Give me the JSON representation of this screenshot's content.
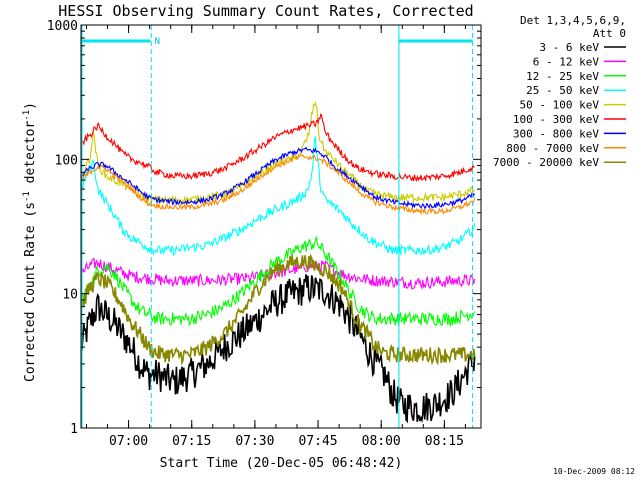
{
  "chart_data": {
    "type": "line",
    "title": "HESSI Observing Summary Count Rates, Corrected",
    "xlabel": "Start Time (20-Dec-05 06:48:42)",
    "ylabel": "Corrected Count Rate (s⁻¹ detector⁻¹)",
    "ylabel_parts": {
      "prefix": "Corrected Count Rate (s",
      "sup1": "-1",
      "middle": " detector",
      "sup2": "-1",
      "suffix": ")"
    },
    "yscale": "log",
    "ylim": [
      1,
      1000
    ],
    "xlim_minutes": [
      0,
      95
    ],
    "x_ticks": [
      {
        "label": "07:00",
        "minutes": 11.3
      },
      {
        "label": "07:15",
        "minutes": 26.3
      },
      {
        "label": "07:30",
        "minutes": 41.3
      },
      {
        "label": "07:45",
        "minutes": 56.3
      },
      {
        "label": "08:00",
        "minutes": 71.3
      },
      {
        "label": "08:15",
        "minutes": 86.3
      }
    ],
    "y_ticks": [
      {
        "label": "1",
        "value": 1
      },
      {
        "label": "10",
        "value": 10
      },
      {
        "label": "100",
        "value": 100
      },
      {
        "label": "1000",
        "value": 1000
      }
    ],
    "legend_header": [
      "Det 1,3,4,5,6,9,",
      "Att 0"
    ],
    "legend_position": "right",
    "timestamp": "10-Dec-2009 08:12",
    "annotations": [
      {
        "label": "N",
        "minutes": 17.5
      }
    ],
    "flags": {
      "night_bars_minutes": [
        [
          0,
          16.5
        ],
        [
          75.5,
          93
        ]
      ],
      "saa_lines_minutes": [
        16.7,
        75.5,
        93
      ]
    },
    "series": [
      {
        "name": "3 - 6 keV",
        "color": "#000000",
        "x": [
          0,
          2,
          4,
          8,
          12,
          14,
          16,
          18,
          22,
          26,
          30,
          34,
          38,
          42,
          46,
          50,
          54,
          58,
          62,
          66,
          70,
          72,
          74,
          76,
          80,
          84,
          88,
          90,
          92,
          94
        ],
        "y": [
          4,
          6,
          8,
          6,
          4,
          3,
          2.5,
          2.5,
          2.2,
          2.5,
          3,
          4,
          5,
          6.5,
          8.5,
          10,
          11,
          10.5,
          8,
          5,
          3,
          2.5,
          1.8,
          1.5,
          1.4,
          1.5,
          1.8,
          2.2,
          2.8,
          3.5
        ]
      },
      {
        "name": "6 - 12 keV",
        "color": "#ff00ff",
        "x": [
          0,
          2,
          4,
          8,
          12,
          16,
          20,
          30,
          40,
          50,
          54,
          58,
          62,
          66,
          70,
          80,
          90,
          94
        ],
        "y": [
          14,
          16,
          17,
          15,
          13.5,
          13,
          12.5,
          12.5,
          13,
          15,
          16,
          16,
          14,
          13,
          12.5,
          12,
          12.5,
          12.5
        ]
      },
      {
        "name": "12 - 25 keV",
        "color": "#00ff00",
        "x": [
          0,
          2,
          4,
          6,
          8,
          10,
          12,
          14,
          16,
          18,
          22,
          26,
          30,
          34,
          38,
          42,
          46,
          50,
          52,
          54,
          56,
          58,
          60,
          62,
          64,
          66,
          68,
          70,
          72,
          76,
          80,
          84,
          88,
          92,
          94
        ],
        "y": [
          9,
          11,
          15,
          16,
          14,
          11,
          9,
          7.5,
          7,
          6.5,
          6.5,
          6.5,
          7,
          8,
          10,
          13,
          17,
          20,
          22,
          23,
          24,
          20,
          16,
          13,
          10,
          8,
          7,
          6.5,
          6.5,
          6.5,
          6.5,
          6.5,
          6.5,
          7,
          7.5
        ]
      },
      {
        "name": "25 - 50 keV",
        "color": "#00ffff",
        "x": [
          0,
          2,
          3,
          4,
          6,
          8,
          10,
          12,
          14,
          16,
          18,
          22,
          26,
          30,
          34,
          38,
          42,
          46,
          50,
          52,
          54,
          55,
          55.6,
          56,
          57,
          58,
          60,
          62,
          64,
          66,
          68,
          70,
          74,
          78,
          82,
          86,
          90,
          94
        ],
        "y": [
          60,
          85,
          95,
          60,
          48,
          38,
          30,
          26,
          24,
          22,
          21,
          21,
          22,
          23,
          26,
          30,
          36,
          42,
          48,
          52,
          60,
          85,
          150,
          110,
          60,
          50,
          45,
          40,
          34,
          30,
          26,
          24,
          21,
          21,
          21,
          22,
          25,
          32
        ]
      },
      {
        "name": "50 - 100 keV",
        "color": "#cccc00",
        "x": [
          0,
          2,
          3,
          4,
          6,
          8,
          10,
          12,
          14,
          16,
          18,
          22,
          26,
          30,
          34,
          38,
          42,
          46,
          50,
          52,
          54,
          55,
          55.8,
          56.5,
          58,
          60,
          62,
          64,
          66,
          68,
          70,
          74,
          78,
          82,
          86,
          90,
          94
        ],
        "y": [
          75,
          100,
          160,
          90,
          75,
          70,
          65,
          60,
          55,
          50,
          50,
          50,
          50,
          52,
          55,
          62,
          75,
          92,
          100,
          110,
          150,
          230,
          280,
          150,
          115,
          100,
          85,
          75,
          65,
          58,
          55,
          52,
          52,
          52,
          52,
          55,
          60
        ]
      },
      {
        "name": "100 - 300 keV",
        "color": "#ff0000",
        "x": [
          0,
          2,
          4,
          6,
          8,
          10,
          12,
          14,
          16,
          18,
          22,
          26,
          30,
          34,
          38,
          42,
          46,
          50,
          53,
          56,
          57,
          58,
          60,
          62,
          64,
          66,
          70,
          74,
          78,
          82,
          86,
          90,
          94
        ],
        "y": [
          130,
          150,
          178,
          150,
          130,
          110,
          100,
          95,
          88,
          80,
          75,
          75,
          78,
          85,
          100,
          120,
          145,
          165,
          175,
          185,
          215,
          160,
          130,
          110,
          95,
          85,
          78,
          75,
          73,
          73,
          75,
          80,
          90
        ]
      },
      {
        "name": "300 - 800 keV",
        "color": "#0000ff",
        "x": [
          0,
          2,
          4,
          6,
          8,
          10,
          12,
          14,
          16,
          18,
          22,
          26,
          30,
          34,
          38,
          42,
          46,
          50,
          53,
          56,
          58,
          60,
          62,
          64,
          66,
          68,
          70,
          74,
          78,
          82,
          86,
          90,
          94
        ],
        "y": [
          75,
          85,
          92,
          90,
          80,
          72,
          65,
          58,
          52,
          50,
          48,
          48,
          50,
          55,
          65,
          80,
          98,
          112,
          118,
          115,
          105,
          90,
          80,
          72,
          65,
          58,
          52,
          48,
          46,
          45,
          46,
          49,
          55
        ]
      },
      {
        "name": "800 - 7000 keV",
        "color": "#ff8800",
        "x": [
          0,
          2,
          4,
          6,
          8,
          10,
          12,
          14,
          16,
          18,
          22,
          26,
          30,
          34,
          38,
          42,
          46,
          50,
          53,
          56,
          58,
          60,
          62,
          64,
          66,
          68,
          70,
          74,
          78,
          82,
          86,
          90,
          94
        ],
        "y": [
          70,
          80,
          88,
          85,
          75,
          68,
          60,
          52,
          47,
          45,
          44,
          44,
          46,
          50,
          58,
          72,
          88,
          100,
          105,
          102,
          95,
          85,
          75,
          66,
          58,
          52,
          48,
          44,
          42,
          41,
          41,
          44,
          50
        ]
      },
      {
        "name": "7000 - 20000 keV",
        "color": "#888800",
        "x": [
          0,
          2,
          4,
          6,
          8,
          10,
          12,
          14,
          16,
          18,
          22,
          26,
          30,
          34,
          38,
          42,
          46,
          50,
          53,
          56,
          58,
          60,
          62,
          64,
          66,
          68,
          70,
          72,
          76,
          80,
          84,
          88,
          92,
          94
        ],
        "y": [
          8,
          11,
          13,
          12,
          10,
          8,
          6,
          5,
          4,
          3.6,
          3.5,
          3.5,
          4,
          5,
          7,
          11,
          15,
          17,
          17.5,
          16,
          15,
          13,
          11,
          8,
          6,
          5,
          4,
          3.6,
          3.5,
          3.5,
          3.5,
          3.5,
          3.5,
          3.6
        ]
      }
    ]
  }
}
